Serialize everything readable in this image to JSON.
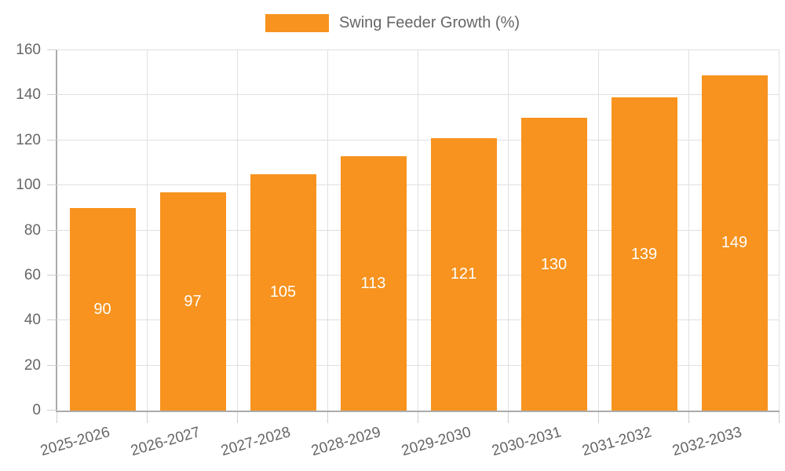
{
  "legend": {
    "label": "Swing Feeder Growth (%)"
  },
  "chart_data": {
    "type": "bar",
    "title": "",
    "xlabel": "",
    "ylabel": "",
    "categories": [
      "2025-2026",
      "2026-2027",
      "2027-2028",
      "2028-2029",
      "2029-2030",
      "2030-2031",
      "2031-2032",
      "2032-2033"
    ],
    "series": [
      {
        "name": "Swing Feeder Growth (%)",
        "values": [
          90,
          97,
          105,
          113,
          121,
          130,
          139,
          149
        ]
      }
    ],
    "ylim": [
      0,
      160
    ],
    "yticks": [
      0,
      20,
      40,
      60,
      80,
      100,
      120,
      140,
      160
    ],
    "grid": true,
    "legend_position": "top",
    "colors": {
      "bar": "#f7931e",
      "value_label": "#ffffff",
      "tick_label": "#666666",
      "grid": "#e0e0e0",
      "tick_mark": "#cfcfcf",
      "axis": "#ababab",
      "background": "#ffffff"
    }
  }
}
